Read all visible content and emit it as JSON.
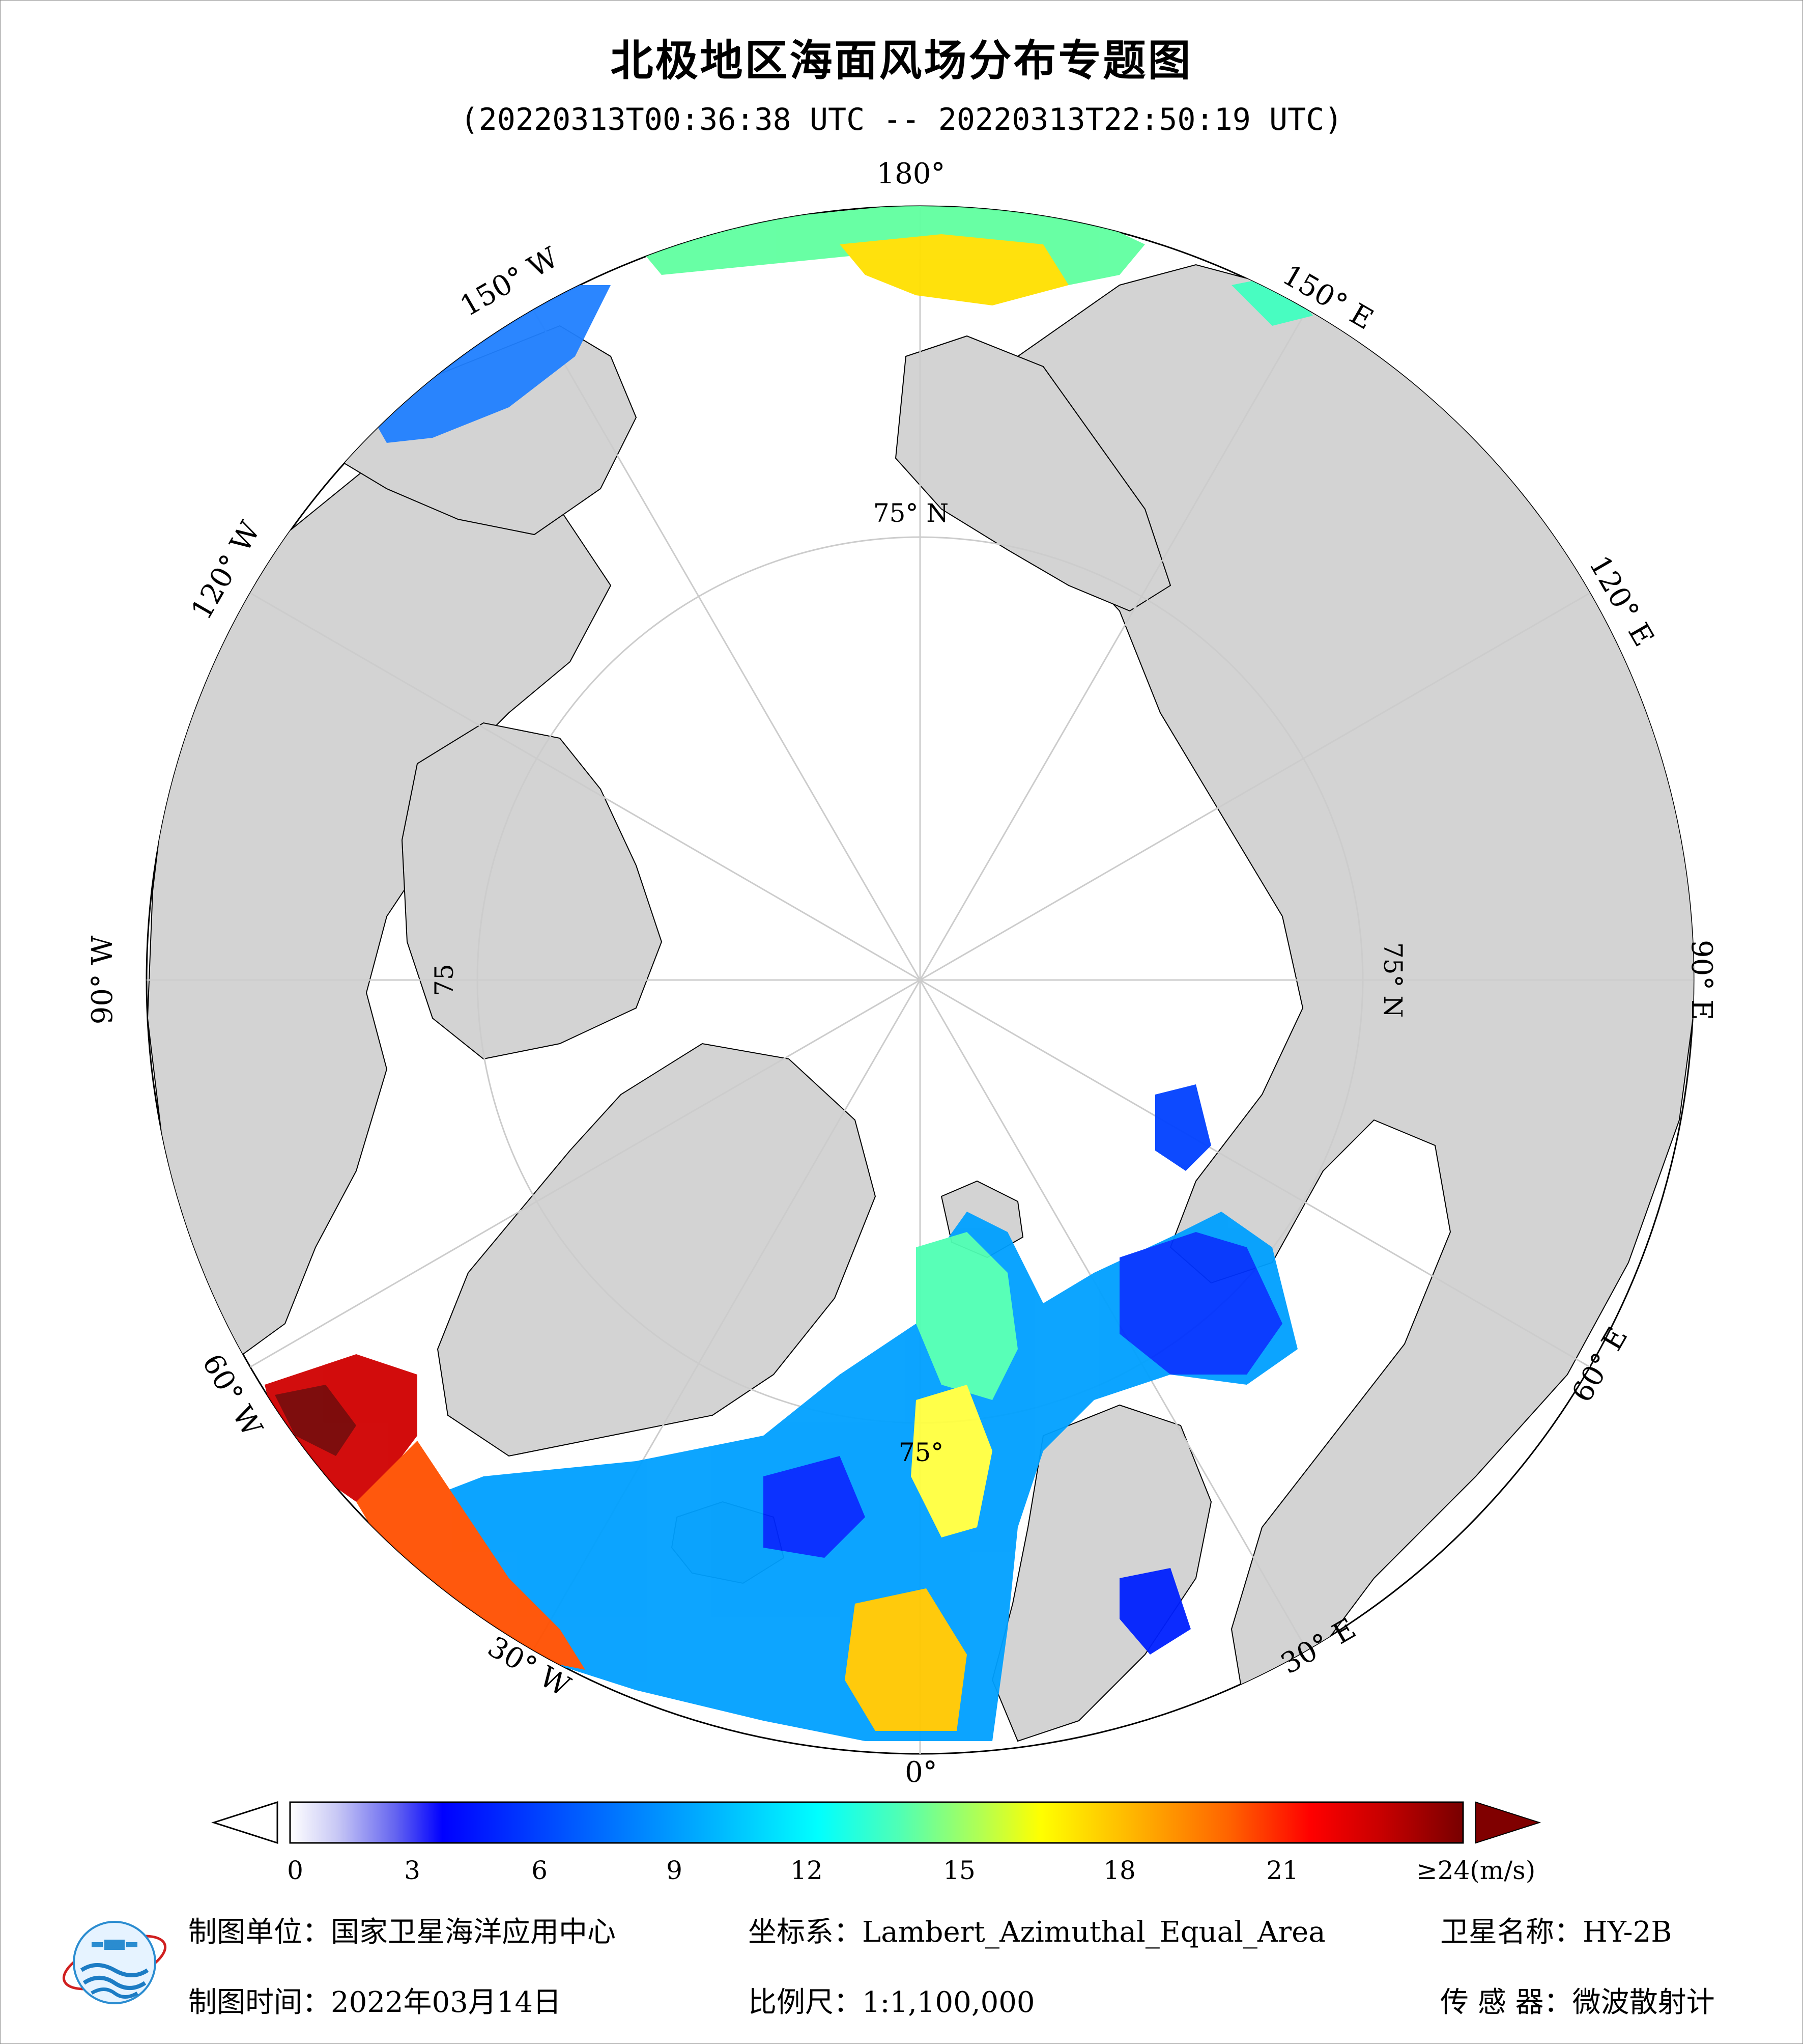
{
  "title": "北极地区海面风场分布专题图",
  "subtitle": "(20220313T00:36:38 UTC -- 20220313T22:50:19 UTC)",
  "map": {
    "ocean_color": "#ffffff",
    "land_color": "#d3d3d3",
    "outside_color": "#d3d3d3",
    "labels": {
      "lon_0": "0°",
      "lon_180": "180°",
      "lon_30e": "30° E",
      "lon_60e": "60° E",
      "lon_90e": "90° E",
      "lon_120e": "120° E",
      "lon_150e": "150° E",
      "lon_30w": "30° W",
      "lon_60w": "60° W",
      "lon_90w": "90° W",
      "lon_120w": "120° W",
      "lon_150w": "150° W",
      "lat_75n_top": "75° N",
      "lat_75n_right": "75° N",
      "lat_75_left": "75",
      "lat_75_bottom": "75°"
    }
  },
  "colorbar": {
    "ticks": [
      "0",
      "3",
      "6",
      "9",
      "12",
      "15",
      "18",
      "21",
      "≥24(m/s)"
    ],
    "range": [
      0,
      24
    ],
    "unit": "m/s",
    "colors": [
      "#ffffff",
      "#c8c8f5",
      "#6464f0",
      "#0000ff",
      "#0060ff",
      "#00b4ff",
      "#00ffff",
      "#50ffb4",
      "#b4ff50",
      "#ffff00",
      "#ffb400",
      "#ff6400",
      "#ff0000",
      "#c80000",
      "#780000"
    ]
  },
  "footer": {
    "unit_label": "制图单位：国家卫星海洋应用中心",
    "time_label": "制图时间：2022年03月14日",
    "coord_label": "坐标系：Lambert_Azimuthal_Equal_Area",
    "scale_label": "比例尺：1:1,100,000",
    "satellite_label": "卫星名称：HY-2B",
    "sensor_label": "传 感 器：微波散射计"
  }
}
